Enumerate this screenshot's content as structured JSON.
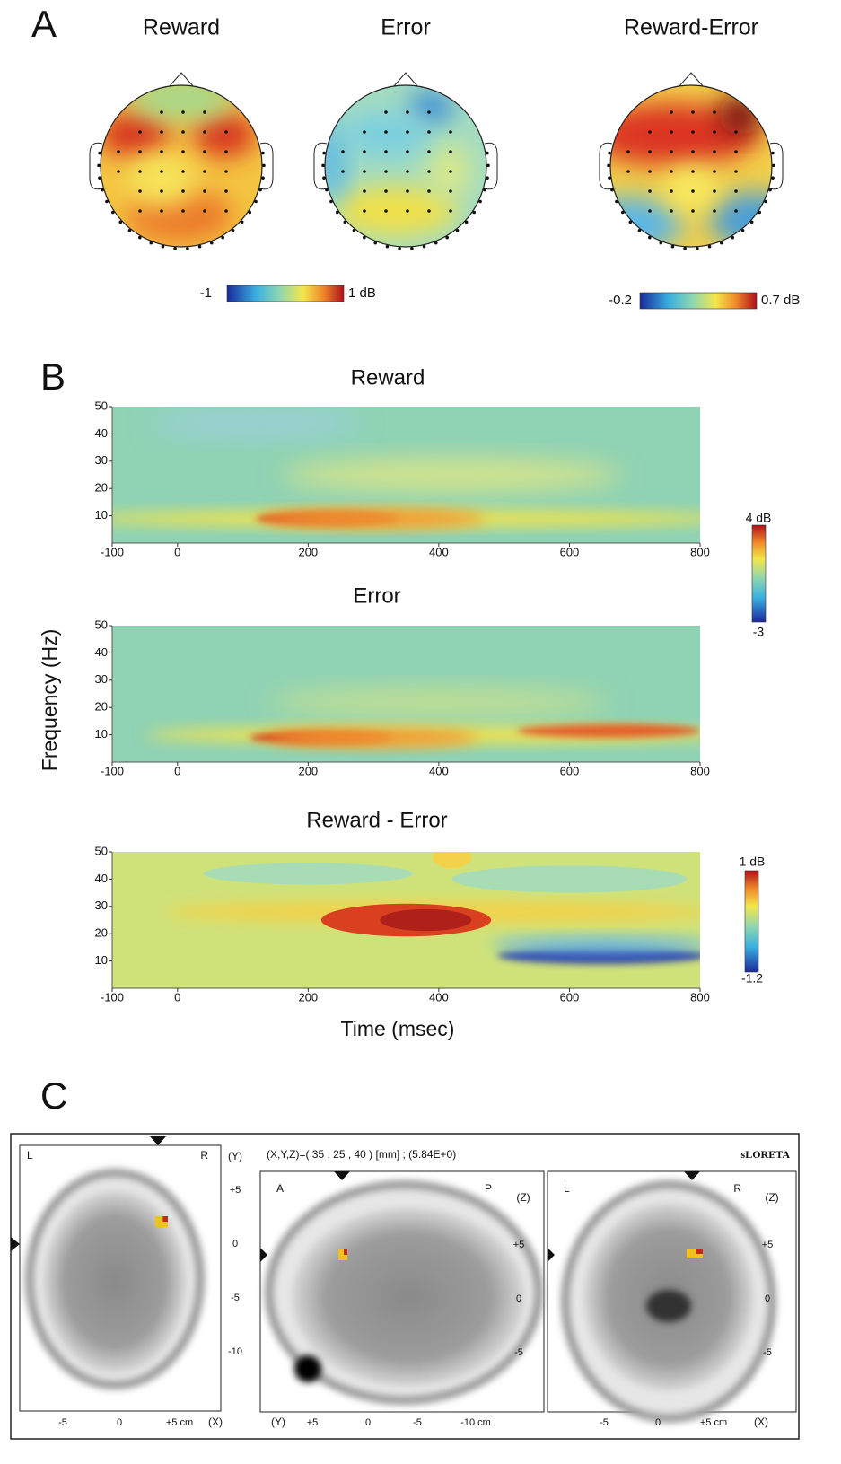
{
  "panel_a": {
    "label": "A",
    "maps": [
      {
        "title": "Reward"
      },
      {
        "title": "Error"
      },
      {
        "title": "Reward-Error"
      }
    ],
    "colorbars": [
      {
        "min_label": "-1",
        "max_label": "1 dB"
      },
      {
        "min_label": "-0.2",
        "max_label": "0.7 dB"
      }
    ]
  },
  "panel_b": {
    "label": "B",
    "y_label": "Frequency (Hz)",
    "x_label": "Time (msec)",
    "xlim": [
      -100,
      800
    ],
    "ylim": [
      0,
      50
    ],
    "xticks": [
      -100,
      0,
      200,
      400,
      600,
      800
    ],
    "yticks": [
      10,
      20,
      30,
      40,
      50
    ],
    "plots": [
      {
        "title": "Reward"
      },
      {
        "title": "Error"
      },
      {
        "title": "Reward - Error"
      }
    ],
    "colorbars": [
      {
        "max_label": "4 dB",
        "min_label": "-3"
      },
      {
        "max_label": "1 dB",
        "min_label": "-1.2"
      }
    ]
  },
  "panel_c": {
    "label": "C",
    "coordinates": "(X,Y,Z)=( 35 , 25 , 40 ) [mm]  ;  (5.84E+0)",
    "method": "sLORETA",
    "views": [
      {
        "corner_left": "L",
        "corner_right": "R",
        "axis_right": "(Y)",
        "right_ticks": [
          "+5",
          "0",
          "-5",
          "-10"
        ],
        "bottom_ticks": [
          "-5",
          "0",
          "+5 cm"
        ],
        "axis_bottom": "(X)"
      },
      {
        "corner_left": "A",
        "corner_right": "P",
        "axis_right": "(Z)",
        "right_ticks": [
          "+5",
          "0",
          "-5"
        ],
        "bottom_ticks": [
          "+5",
          "0",
          "-5",
          "-10 cm"
        ],
        "axis_bottom": "(Y)"
      },
      {
        "corner_left": "L",
        "corner_right": "R",
        "axis_right": "(Z)",
        "right_ticks": [
          "+5",
          "0",
          "-5"
        ],
        "bottom_ticks": [
          "-5",
          "0",
          "+5 cm"
        ],
        "axis_bottom": "(X)"
      }
    ]
  }
}
